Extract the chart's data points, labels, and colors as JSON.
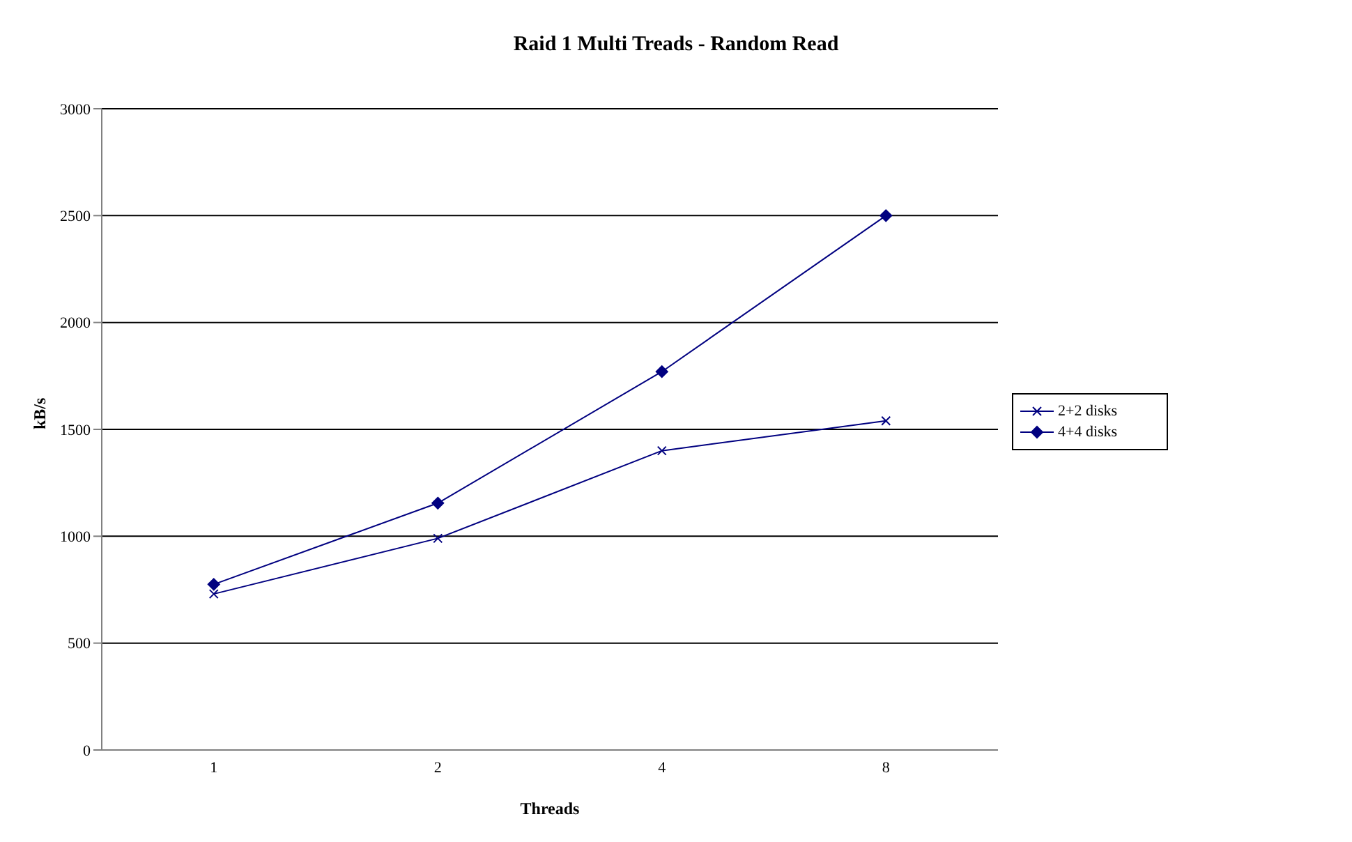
{
  "chart_data": {
    "type": "line",
    "title": "Raid 1 Multi Treads - Random Read",
    "xlabel": "Threads",
    "ylabel": "kB/s",
    "categories": [
      "1",
      "2",
      "4",
      "8"
    ],
    "series": [
      {
        "name": "2+2 disks",
        "color": "#000080",
        "marker": "cross",
        "values": [
          730,
          990,
          1400,
          1540
        ]
      },
      {
        "name": "4+4 disks",
        "color": "#000080",
        "marker": "diamond",
        "values": [
          775,
          1155,
          1770,
          2500
        ]
      }
    ],
    "ylim": [
      0,
      3000
    ],
    "yticks": [
      0,
      500,
      1000,
      1500,
      2000,
      2500,
      3000
    ],
    "grid": "y",
    "legend": "right"
  }
}
